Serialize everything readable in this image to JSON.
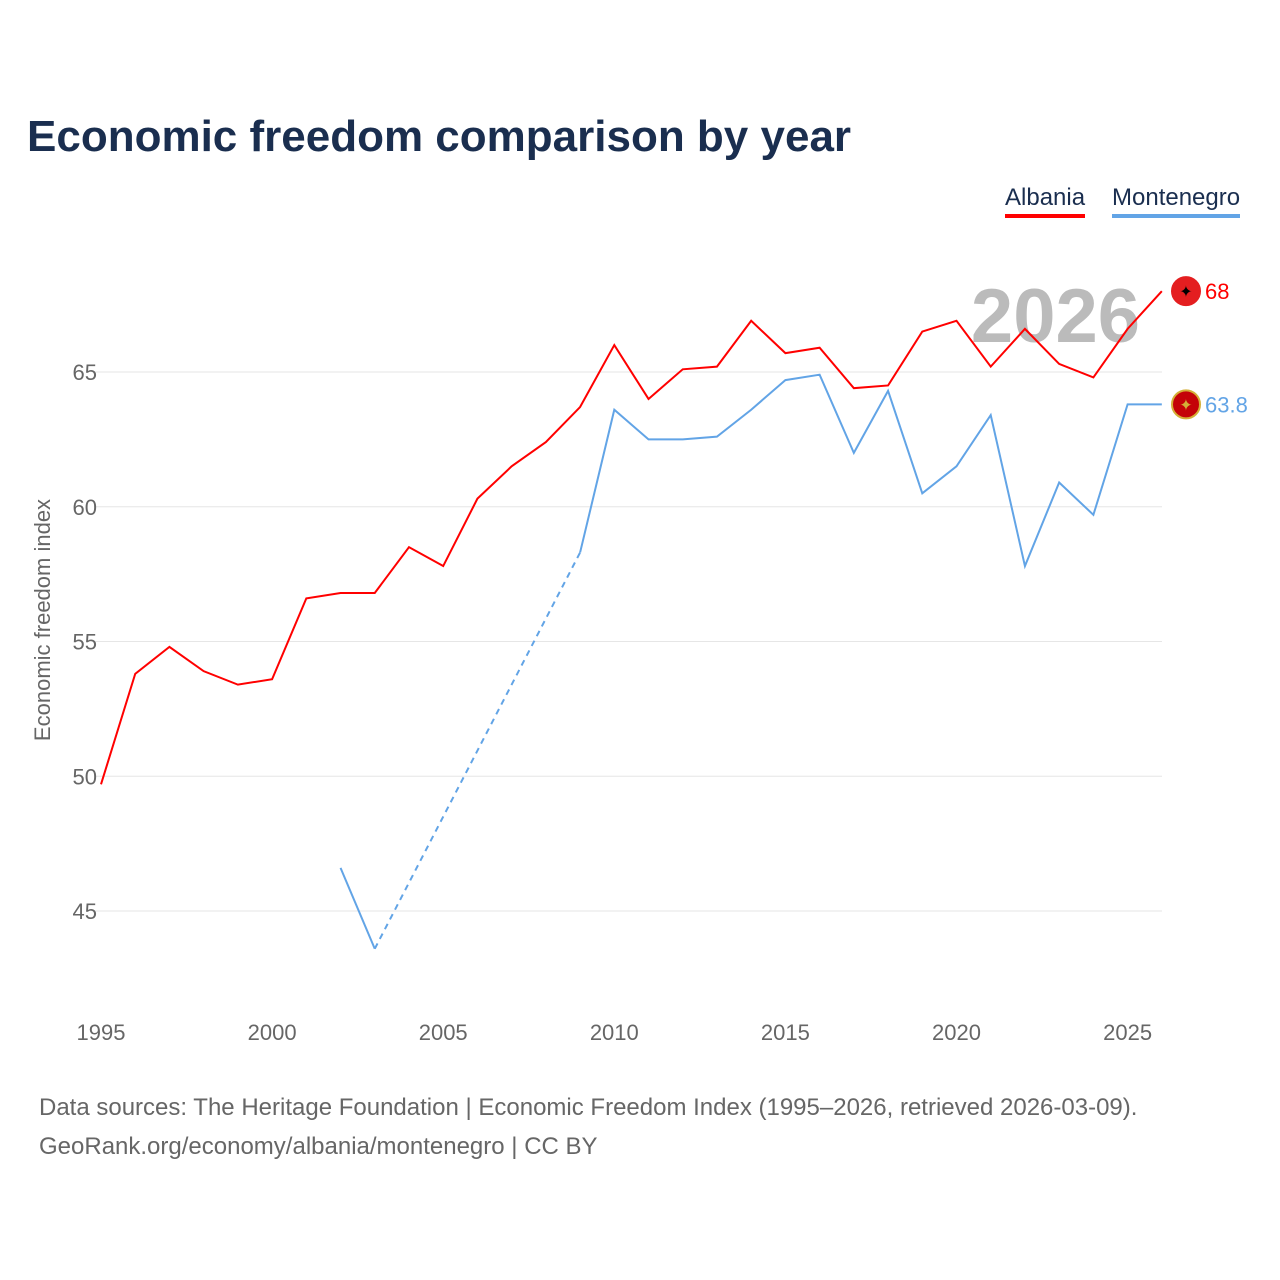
{
  "title": "Economic freedom comparison by year",
  "legend": [
    "Albania",
    "Montenegro"
  ],
  "footer": {
    "line1": "Data sources: The Heritage Foundation | Economic Freedom Index (1995–2026, retrieved 2026-03-09).",
    "line2": "GeoRank.org/economy/albania/montenegro | CC BY"
  },
  "chart_data": {
    "type": "line",
    "title": "Economic freedom comparison by year",
    "ylabel": "Economic freedom index",
    "xlabel": "",
    "year_label": "2026",
    "xlim": [
      1995,
      2026
    ],
    "ylim": [
      42,
      70
    ],
    "xticks": [
      1995,
      2000,
      2005,
      2010,
      2015,
      2020,
      2025
    ],
    "yticks": [
      45,
      50,
      55,
      60,
      65
    ],
    "grid": true,
    "legend_position": "top-right",
    "series": [
      {
        "name": "Albania",
        "color": "#ff0000",
        "end_label": "68",
        "x": [
          1995,
          1996,
          1997,
          1998,
          1999,
          2000,
          2001,
          2002,
          2003,
          2004,
          2005,
          2006,
          2007,
          2008,
          2009,
          2010,
          2011,
          2012,
          2013,
          2014,
          2015,
          2016,
          2017,
          2018,
          2019,
          2020,
          2021,
          2022,
          2023,
          2024,
          2025,
          2026
        ],
        "y": [
          49.7,
          53.8,
          54.8,
          53.9,
          53.4,
          53.6,
          56.6,
          56.8,
          56.8,
          58.5,
          57.8,
          60.3,
          61.5,
          62.4,
          63.7,
          66.0,
          64.0,
          65.1,
          65.2,
          66.9,
          65.7,
          65.9,
          64.4,
          64.5,
          66.5,
          66.9,
          65.2,
          66.6,
          65.3,
          64.8,
          66.6,
          68.0
        ]
      },
      {
        "name": "Montenegro",
        "color": "#62a4e6",
        "end_label": "63.8",
        "x": [
          2002,
          2003,
          2009,
          2010,
          2011,
          2012,
          2013,
          2014,
          2015,
          2016,
          2017,
          2018,
          2019,
          2020,
          2021,
          2022,
          2023,
          2024,
          2025,
          2026
        ],
        "y": [
          46.6,
          43.6,
          58.3,
          63.6,
          62.5,
          62.5,
          62.6,
          63.6,
          64.7,
          64.9,
          62.0,
          64.3,
          60.5,
          61.5,
          63.4,
          57.8,
          60.9,
          59.7,
          63.8,
          63.8
        ],
        "gap_dashed": [
          2003,
          2009
        ]
      }
    ]
  }
}
